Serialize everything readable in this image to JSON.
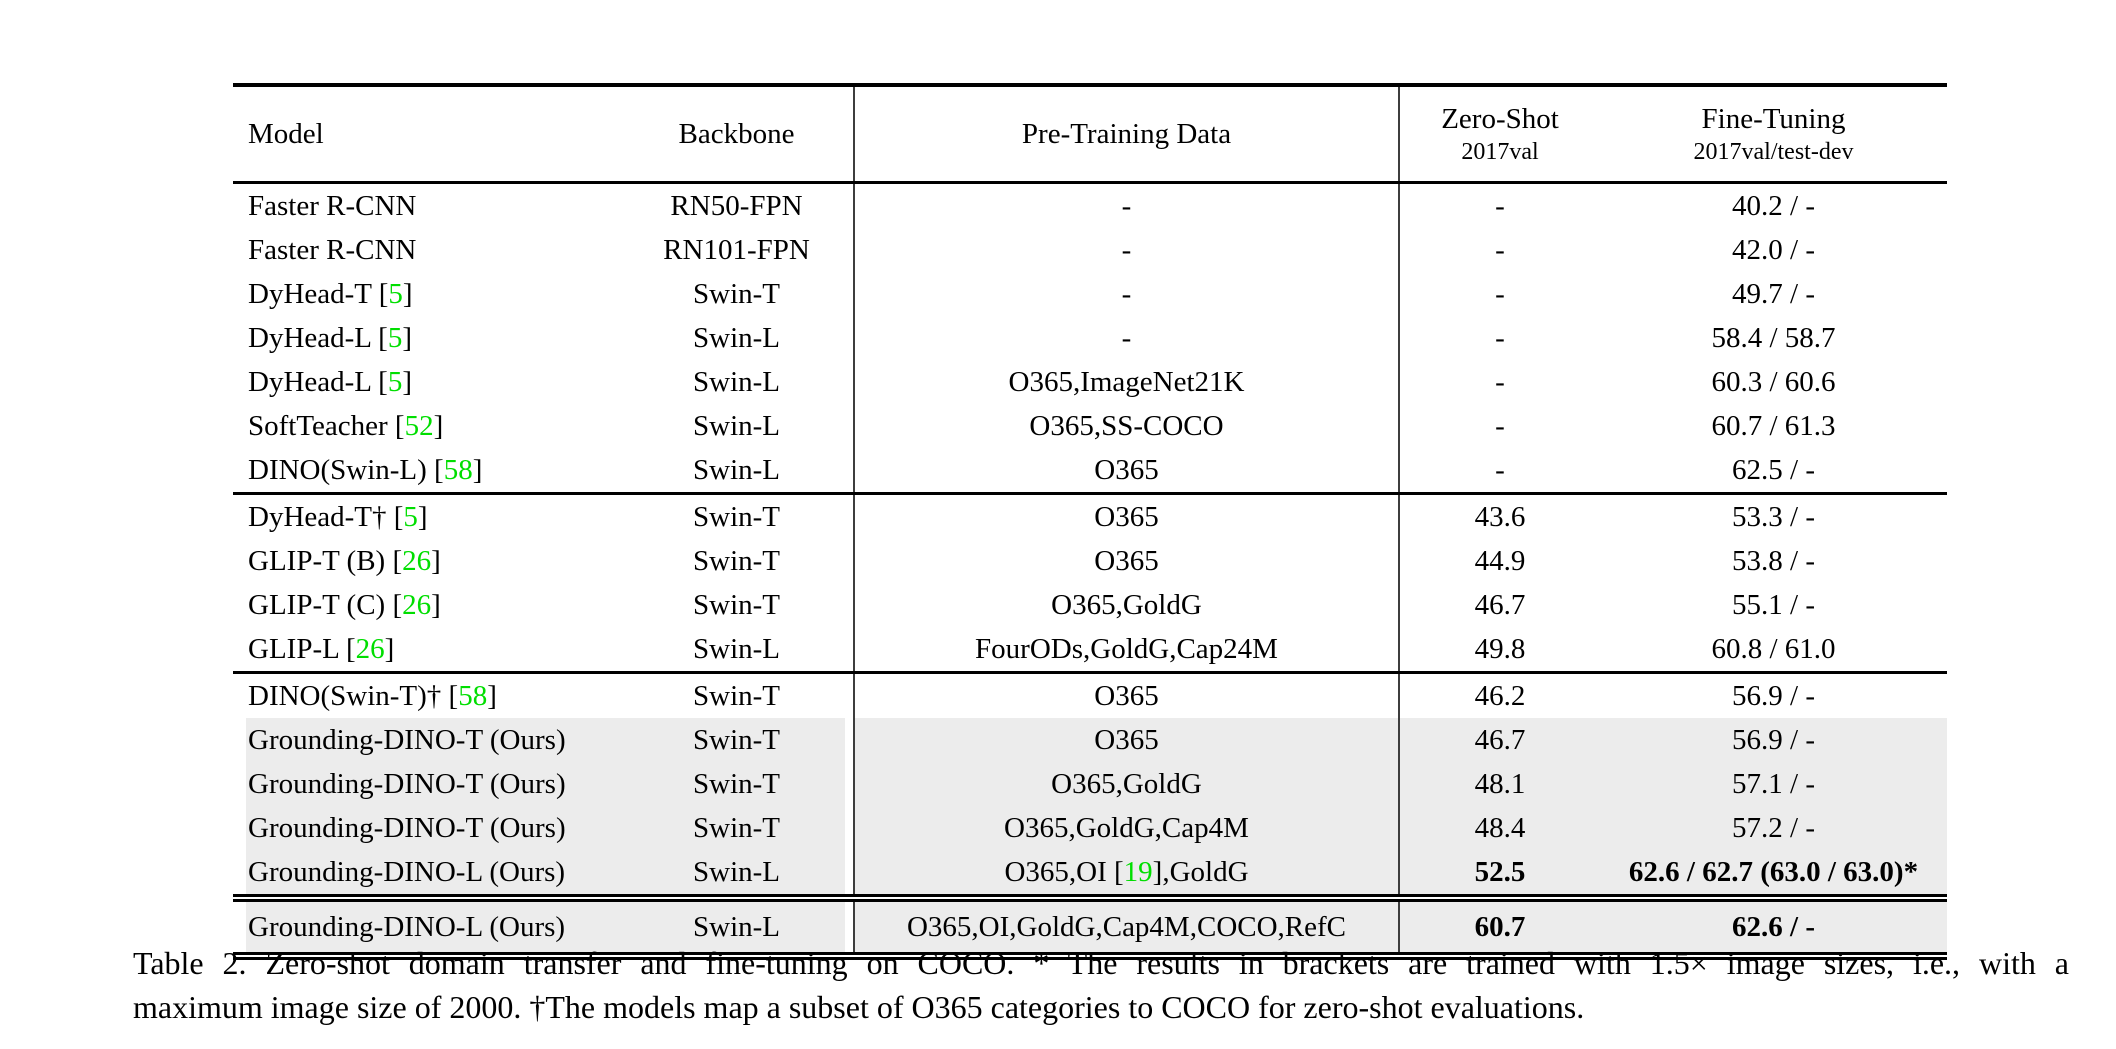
{
  "colors": {
    "citation_green": "#00DE00",
    "row_shade": "#ececec",
    "rule_black": "#000000",
    "vertical_rule_gray": "#3d3d3d"
  },
  "table": {
    "columns": {
      "model": "Model",
      "backbone": "Backbone",
      "pretrain": "Pre-Training Data",
      "zeroshot_line1": "Zero-Shot",
      "zeroshot_line2": "2017val",
      "finetune_line1": "Fine-Tuning",
      "finetune_line2": "2017val/test-dev"
    },
    "groups": [
      {
        "rows": [
          {
            "model_prefix": "Faster R-CNN",
            "cite": "",
            "model_suffix": "",
            "backbone": "RN50-FPN",
            "pretrain_prefix": "-",
            "pretrain_cite": "",
            "pretrain_suffix": "",
            "zero_shot": "-",
            "fine_tuning": "40.2 / -",
            "bold": false,
            "shaded": false
          },
          {
            "model_prefix": "Faster R-CNN",
            "cite": "",
            "model_suffix": "",
            "backbone": "RN101-FPN",
            "pretrain_prefix": "-",
            "pretrain_cite": "",
            "pretrain_suffix": "",
            "zero_shot": "-",
            "fine_tuning": "42.0 / -",
            "bold": false,
            "shaded": false
          },
          {
            "model_prefix": "DyHead-T [",
            "cite": "5",
            "model_suffix": "]",
            "backbone": "Swin-T",
            "pretrain_prefix": "-",
            "pretrain_cite": "",
            "pretrain_suffix": "",
            "zero_shot": "-",
            "fine_tuning": "49.7 / -",
            "bold": false,
            "shaded": false
          },
          {
            "model_prefix": "DyHead-L [",
            "cite": "5",
            "model_suffix": "]",
            "backbone": "Swin-L",
            "pretrain_prefix": "-",
            "pretrain_cite": "",
            "pretrain_suffix": "",
            "zero_shot": "-",
            "fine_tuning": "58.4 / 58.7",
            "bold": false,
            "shaded": false
          },
          {
            "model_prefix": "DyHead-L [",
            "cite": "5",
            "model_suffix": "]",
            "backbone": "Swin-L",
            "pretrain_prefix": "O365,ImageNet21K",
            "pretrain_cite": "",
            "pretrain_suffix": "",
            "zero_shot": "-",
            "fine_tuning": "60.3 / 60.6",
            "bold": false,
            "shaded": false
          },
          {
            "model_prefix": "SoftTeacher [",
            "cite": "52",
            "model_suffix": "]",
            "backbone": "Swin-L",
            "pretrain_prefix": "O365,SS-COCO",
            "pretrain_cite": "",
            "pretrain_suffix": "",
            "zero_shot": "-",
            "fine_tuning": "60.7 / 61.3",
            "bold": false,
            "shaded": false
          },
          {
            "model_prefix": "DINO(Swin-L) [",
            "cite": "58",
            "model_suffix": "]",
            "backbone": "Swin-L",
            "pretrain_prefix": "O365",
            "pretrain_cite": "",
            "pretrain_suffix": "",
            "zero_shot": "-",
            "fine_tuning": "62.5 / -",
            "bold": false,
            "shaded": false
          }
        ]
      },
      {
        "rows": [
          {
            "model_prefix": "DyHead-T† [",
            "cite": "5",
            "model_suffix": "]",
            "backbone": "Swin-T",
            "pretrain_prefix": "O365",
            "pretrain_cite": "",
            "pretrain_suffix": "",
            "zero_shot": "43.6",
            "fine_tuning": "53.3 / -",
            "bold": false,
            "shaded": false
          },
          {
            "model_prefix": "GLIP-T (B) [",
            "cite": "26",
            "model_suffix": "]",
            "backbone": "Swin-T",
            "pretrain_prefix": "O365",
            "pretrain_cite": "",
            "pretrain_suffix": "",
            "zero_shot": "44.9",
            "fine_tuning": "53.8 / -",
            "bold": false,
            "shaded": false
          },
          {
            "model_prefix": "GLIP-T (C) [",
            "cite": "26",
            "model_suffix": "]",
            "backbone": "Swin-T",
            "pretrain_prefix": "O365,GoldG",
            "pretrain_cite": "",
            "pretrain_suffix": "",
            "zero_shot": "46.7",
            "fine_tuning": "55.1 / -",
            "bold": false,
            "shaded": false
          },
          {
            "model_prefix": "GLIP-L [",
            "cite": "26",
            "model_suffix": "]",
            "backbone": "Swin-L",
            "pretrain_prefix": "FourODs,GoldG,Cap24M",
            "pretrain_cite": "",
            "pretrain_suffix": "",
            "zero_shot": "49.8",
            "fine_tuning": "60.8 / 61.0",
            "bold": false,
            "shaded": false
          }
        ]
      },
      {
        "rows": [
          {
            "model_prefix": "DINO(Swin-T)† [",
            "cite": "58",
            "model_suffix": "]",
            "backbone": "Swin-T",
            "pretrain_prefix": "O365",
            "pretrain_cite": "",
            "pretrain_suffix": "",
            "zero_shot": "46.2",
            "fine_tuning": "56.9 / -",
            "bold": false,
            "shaded": false
          },
          {
            "model_prefix": "Grounding-DINO-T (Ours)",
            "cite": "",
            "model_suffix": "",
            "backbone": "Swin-T",
            "pretrain_prefix": "O365",
            "pretrain_cite": "",
            "pretrain_suffix": "",
            "zero_shot": "46.7",
            "fine_tuning": "56.9 / -",
            "bold": false,
            "shaded": true
          },
          {
            "model_prefix": "Grounding-DINO-T (Ours)",
            "cite": "",
            "model_suffix": "",
            "backbone": "Swin-T",
            "pretrain_prefix": "O365,GoldG",
            "pretrain_cite": "",
            "pretrain_suffix": "",
            "zero_shot": "48.1",
            "fine_tuning": "57.1 / -",
            "bold": false,
            "shaded": true
          },
          {
            "model_prefix": "Grounding-DINO-T (Ours)",
            "cite": "",
            "model_suffix": "",
            "backbone": "Swin-T",
            "pretrain_prefix": "O365,GoldG,Cap4M",
            "pretrain_cite": "",
            "pretrain_suffix": "",
            "zero_shot": "48.4",
            "fine_tuning": "57.2 / -",
            "bold": false,
            "shaded": true
          },
          {
            "model_prefix": "Grounding-DINO-L (Ours)",
            "cite": "",
            "model_suffix": "",
            "backbone": "Swin-L",
            "pretrain_prefix": "O365,OI [",
            "pretrain_cite": "19",
            "pretrain_suffix": "],GoldG",
            "zero_shot": "52.5",
            "fine_tuning": "62.6 / 62.7 (63.0 / 63.0)*",
            "bold": true,
            "shaded": true
          }
        ]
      },
      {
        "rows": [
          {
            "model_prefix": "Grounding-DINO-L (Ours)",
            "cite": "",
            "model_suffix": "",
            "backbone": "Swin-L",
            "pretrain_prefix": "O365,OI,GoldG,Cap4M,COCO,RefC",
            "pretrain_cite": "",
            "pretrain_suffix": "",
            "zero_shot": "60.7",
            "fine_tuning": "62.6 / -",
            "bold": true,
            "shaded": true
          }
        ]
      }
    ]
  },
  "caption": {
    "line1": "Table 2.  Zero-shot domain transfer and fine-tuning on COCO. * The results in brackets are trained with 1.5× image sizes, i.e., with a",
    "line2": "maximum image size of 2000. †The models map a subset of O365 categories to COCO for zero-shot evaluations."
  }
}
